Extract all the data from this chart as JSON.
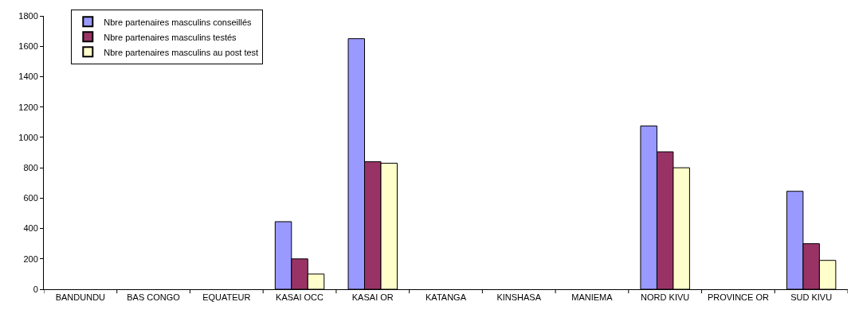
{
  "chart_data": {
    "type": "bar",
    "categories": [
      "BANDUNDU",
      "BAS CONGO",
      "EQUATEUR",
      "KASAI OCC",
      "KASAI OR",
      "KATANGA",
      "KINSHASA",
      "MANIEMA",
      "NORD KIVU",
      "PROVINCE OR",
      "SUD KIVU"
    ],
    "series": [
      {
        "name": "Nbre partenaires masculins conseillés",
        "color": "#9999ff",
        "values": [
          null,
          null,
          null,
          445,
          1650,
          null,
          null,
          null,
          1075,
          null,
          645
        ]
      },
      {
        "name": "Nbre partenaires masculins testés",
        "color": "#993366",
        "values": [
          null,
          null,
          null,
          200,
          840,
          null,
          null,
          null,
          905,
          null,
          300
        ]
      },
      {
        "name": "Nbre partenaires masculins au post test",
        "color": "#ffffcc",
        "values": [
          null,
          null,
          null,
          100,
          830,
          null,
          null,
          null,
          800,
          null,
          190
        ]
      }
    ],
    "ylim": [
      0,
      1800
    ],
    "yticks": [
      0,
      200,
      400,
      600,
      800,
      1000,
      1200,
      1400,
      1600,
      1800
    ],
    "grid": false,
    "legend": "top left"
  }
}
